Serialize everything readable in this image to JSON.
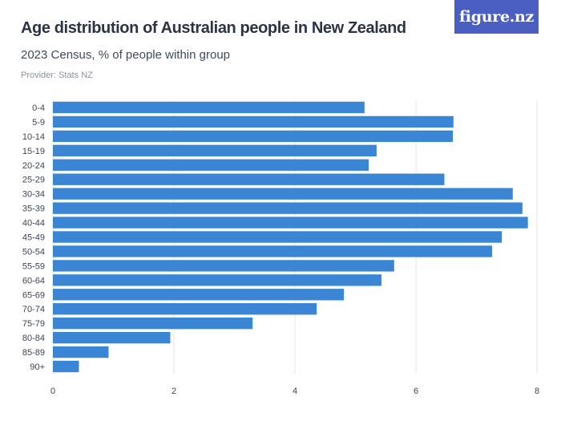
{
  "header": {
    "title": "Age distribution of Australian people in New Zealand",
    "subtitle": "2023 Census, % of people within group",
    "provider": "Provider: Stats NZ",
    "logo_text": "figure.nz"
  },
  "colors": {
    "bar": "#3a85d4",
    "grid": "#e2e5ea",
    "logo_bg": "#4b5ec2"
  },
  "chart_data": {
    "type": "bar",
    "orientation": "horizontal",
    "categories": [
      "0-4",
      "5-9",
      "10-14",
      "15-19",
      "20-24",
      "25-29",
      "30-34",
      "35-39",
      "40-44",
      "45-49",
      "50-54",
      "55-59",
      "60-64",
      "65-69",
      "70-74",
      "75-79",
      "80-84",
      "85-89",
      "90+"
    ],
    "values": [
      5.15,
      6.62,
      6.61,
      5.35,
      5.22,
      6.47,
      7.6,
      7.76,
      7.85,
      7.42,
      7.26,
      5.64,
      5.43,
      4.81,
      4.36,
      3.3,
      1.94,
      0.92,
      0.43
    ],
    "x_ticks": [
      "0",
      "2",
      "4",
      "6",
      "8"
    ],
    "xlim": [
      0,
      8
    ],
    "grid": true,
    "legend": false
  }
}
